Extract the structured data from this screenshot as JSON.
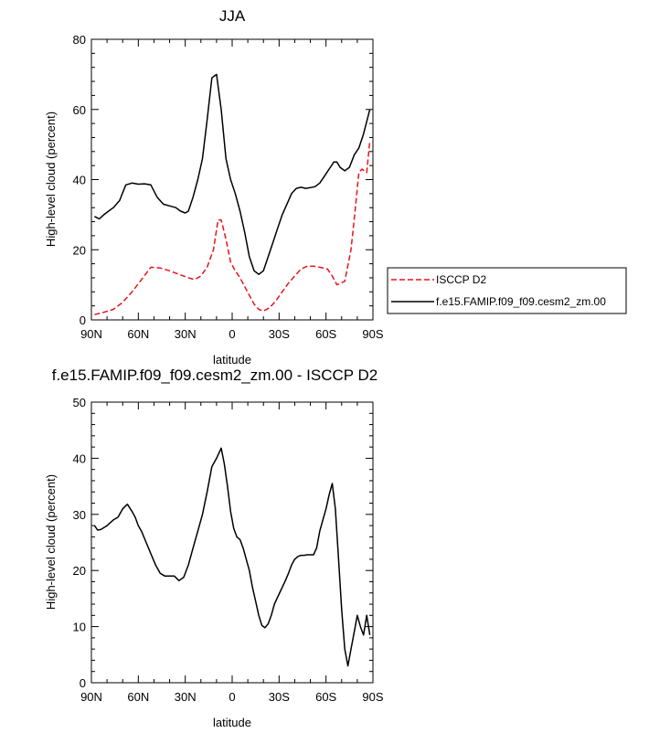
{
  "chart_data": [
    {
      "type": "line",
      "title": "JJA",
      "xlabel": "latitude",
      "ylabel": "High-level cloud (percent)",
      "xlim": [
        -90,
        90
      ],
      "ylim": [
        0,
        80
      ],
      "x_ticks": [
        -90,
        -60,
        -30,
        0,
        30,
        60,
        90
      ],
      "x_tick_labels": [
        "90N",
        "60N",
        "30N",
        "0",
        "30S",
        "60S",
        "90S"
      ],
      "y_ticks": [
        0,
        20,
        40,
        60,
        80
      ],
      "y_tick_labels": [
        "0",
        "20",
        "40",
        "60",
        "80"
      ],
      "legend_position": "right",
      "series": [
        {
          "name": "ISCCP D2",
          "color": "#e8141c",
          "dash": "dashed",
          "x": [
            -88,
            -82,
            -76,
            -70,
            -64,
            -58,
            -52,
            -46,
            -40,
            -34,
            -28,
            -24,
            -20,
            -16,
            -12,
            -9,
            -7,
            -4,
            -1,
            2,
            5,
            8,
            11,
            14,
            17,
            20,
            24,
            28,
            32,
            36,
            40,
            44,
            48,
            52,
            56,
            61,
            64,
            67,
            72,
            76,
            79,
            81,
            83,
            86,
            88
          ],
          "y": [
            1.5,
            2.2,
            3,
            5,
            8,
            11.5,
            15,
            14.8,
            14,
            13,
            12,
            11.5,
            12.5,
            15,
            20,
            28.5,
            28.5,
            23,
            16.5,
            14,
            12,
            9.5,
            7,
            4.5,
            3,
            2.5,
            3.5,
            5.5,
            8,
            10.5,
            12.5,
            14.5,
            15.3,
            15.3,
            15,
            14.5,
            12.5,
            10,
            11,
            20,
            33,
            42,
            43,
            42,
            51
          ]
        },
        {
          "name": "f.e15.FAMIP.f09_f09.cesm2_zm.00",
          "color": "#000000",
          "dash": "solid",
          "x": [
            -88,
            -85,
            -82,
            -79,
            -76,
            -72,
            -68,
            -64,
            -60,
            -56,
            -52,
            -48,
            -44,
            -40,
            -36,
            -33,
            -30,
            -28,
            -25,
            -22,
            -19,
            -16,
            -13,
            -10,
            -7,
            -4,
            -1,
            2,
            5,
            8,
            11,
            14,
            17,
            20,
            23,
            26,
            29,
            32,
            35,
            38,
            41,
            44,
            47,
            50,
            53,
            56,
            59,
            62,
            65,
            67,
            69,
            72,
            75,
            78,
            81,
            84,
            88
          ],
          "y": [
            29.5,
            28.8,
            30,
            31,
            32,
            34,
            38.5,
            39,
            38.7,
            38.8,
            38.5,
            35,
            33,
            32.5,
            32,
            31,
            30.5,
            31,
            35,
            40,
            46,
            57,
            69,
            70,
            60,
            46,
            40,
            36,
            31,
            25,
            18,
            14,
            13,
            14,
            18,
            22,
            26,
            30,
            33,
            36,
            37.5,
            37.8,
            37.5,
            37.7,
            38,
            39,
            41,
            43,
            45,
            45,
            43.5,
            42.5,
            43.5,
            47,
            49,
            53,
            60
          ]
        }
      ]
    },
    {
      "type": "line",
      "title": "f.e15.FAMIP.f09_f09.cesm2_zm.00 - ISCCP D2",
      "xlabel": "latitude",
      "ylabel": "High-level cloud (percent)",
      "xlim": [
        -90,
        90
      ],
      "ylim": [
        0,
        50
      ],
      "x_ticks": [
        -90,
        -60,
        -30,
        0,
        30,
        60,
        90
      ],
      "x_tick_labels": [
        "90N",
        "60N",
        "30N",
        "0",
        "30S",
        "60S",
        "90S"
      ],
      "y_ticks": [
        0,
        10,
        20,
        30,
        40,
        50
      ],
      "y_tick_labels": [
        "0",
        "10",
        "20",
        "30",
        "40",
        "50"
      ],
      "series": [
        {
          "color": "#000000",
          "dash": "solid",
          "x": [
            -88,
            -86,
            -84,
            -80,
            -76,
            -73,
            -70,
            -67,
            -64,
            -62,
            -60,
            -58,
            -55,
            -52,
            -49,
            -46,
            -43,
            -40,
            -37,
            -34,
            -31,
            -28,
            -25,
            -22,
            -19,
            -16,
            -13,
            -10,
            -7,
            -5,
            -3,
            -1,
            1,
            3,
            5,
            7,
            9,
            11,
            13,
            15,
            17,
            19,
            21,
            23,
            25,
            27,
            30,
            32,
            34,
            36,
            38,
            40,
            42,
            44,
            46,
            48,
            50,
            52,
            54,
            56,
            58,
            60,
            62,
            64,
            66,
            68,
            70,
            72,
            74,
            76,
            78,
            80,
            82,
            84,
            86,
            88
          ],
          "y": [
            28,
            27.2,
            27.3,
            28,
            29,
            29.5,
            31,
            31.8,
            30.5,
            29.5,
            28,
            27,
            25,
            23,
            21,
            19.5,
            19,
            19,
            19,
            18.2,
            18.8,
            21,
            24,
            27,
            30,
            34,
            38.5,
            40,
            41.8,
            39,
            35,
            30.5,
            27.5,
            26,
            25.5,
            24,
            22,
            20,
            17,
            14.5,
            12,
            10.2,
            9.8,
            10.5,
            12,
            14,
            15.8,
            17,
            18.2,
            19.5,
            21,
            22,
            22.5,
            22.7,
            22.7,
            22.8,
            22.8,
            22.8,
            24,
            27,
            29,
            31,
            33.5,
            35.5,
            31,
            22,
            13,
            6,
            3,
            6,
            9,
            12,
            10,
            8.5,
            12,
            8.5
          ]
        }
      ]
    }
  ]
}
